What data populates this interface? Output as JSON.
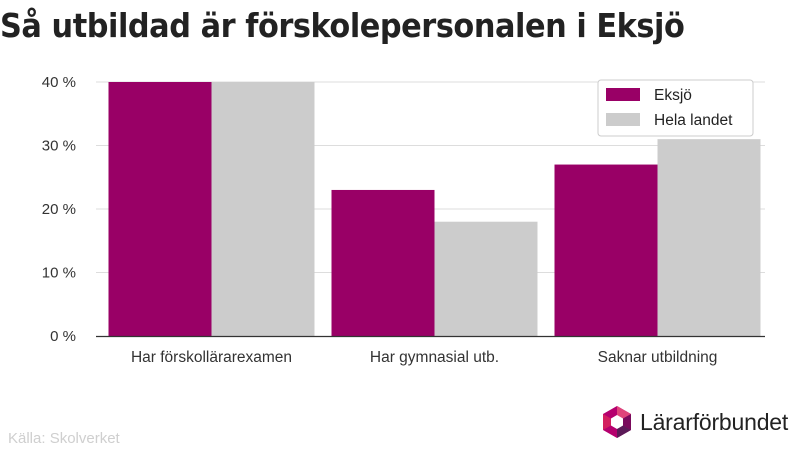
{
  "title": "Så utbildad är förskolepersonalen i Eksjö",
  "source": "Källa: Skolverket",
  "brand": {
    "name": "Lärarförbundet",
    "icon": "lararforbundet-logo-icon"
  },
  "colors": {
    "eksjo": "#990066",
    "hela_landet": "#cccccc",
    "grid": "#dddddd",
    "axis": "#333333"
  },
  "chart_data": {
    "type": "bar",
    "categories": [
      "Har förskollärarexamen",
      "Har gymnasial utb.",
      "Saknar utbildning"
    ],
    "series": [
      {
        "name": "Eksjö",
        "values": [
          40,
          23,
          27
        ]
      },
      {
        "name": "Hela landet",
        "values": [
          40,
          18,
          31
        ]
      }
    ],
    "ylim": [
      0,
      40
    ],
    "yticks": [
      0,
      10,
      20,
      30,
      40
    ],
    "ytick_labels": [
      "0 %",
      "10 %",
      "20 %",
      "30 %",
      "40 %"
    ],
    "grid": true,
    "legend": "top-right"
  }
}
